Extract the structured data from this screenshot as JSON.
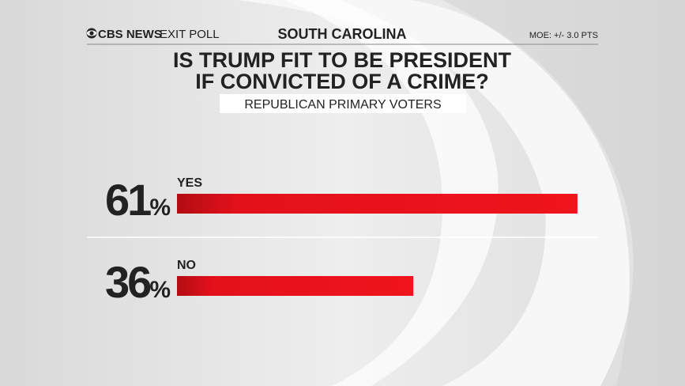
{
  "chart_data": {
    "type": "hbar",
    "brand": "CBS NEWS",
    "brand_label": "EXIT POLL",
    "header": "SOUTH CAROLINA",
    "note": "MOE: +/- 3.0 PTS",
    "title": [
      "IS TRUMP FIT TO BE PRESIDENT",
      "IF CONVICTED OF A CRIME?"
    ],
    "subtitle": "REPUBLICAN PRIMARY VOTERS",
    "categories": [
      "YES",
      "NO"
    ],
    "values": [
      61,
      36
    ],
    "value_labels": [
      "61%",
      "36%"
    ],
    "color": "#e3111b"
  }
}
